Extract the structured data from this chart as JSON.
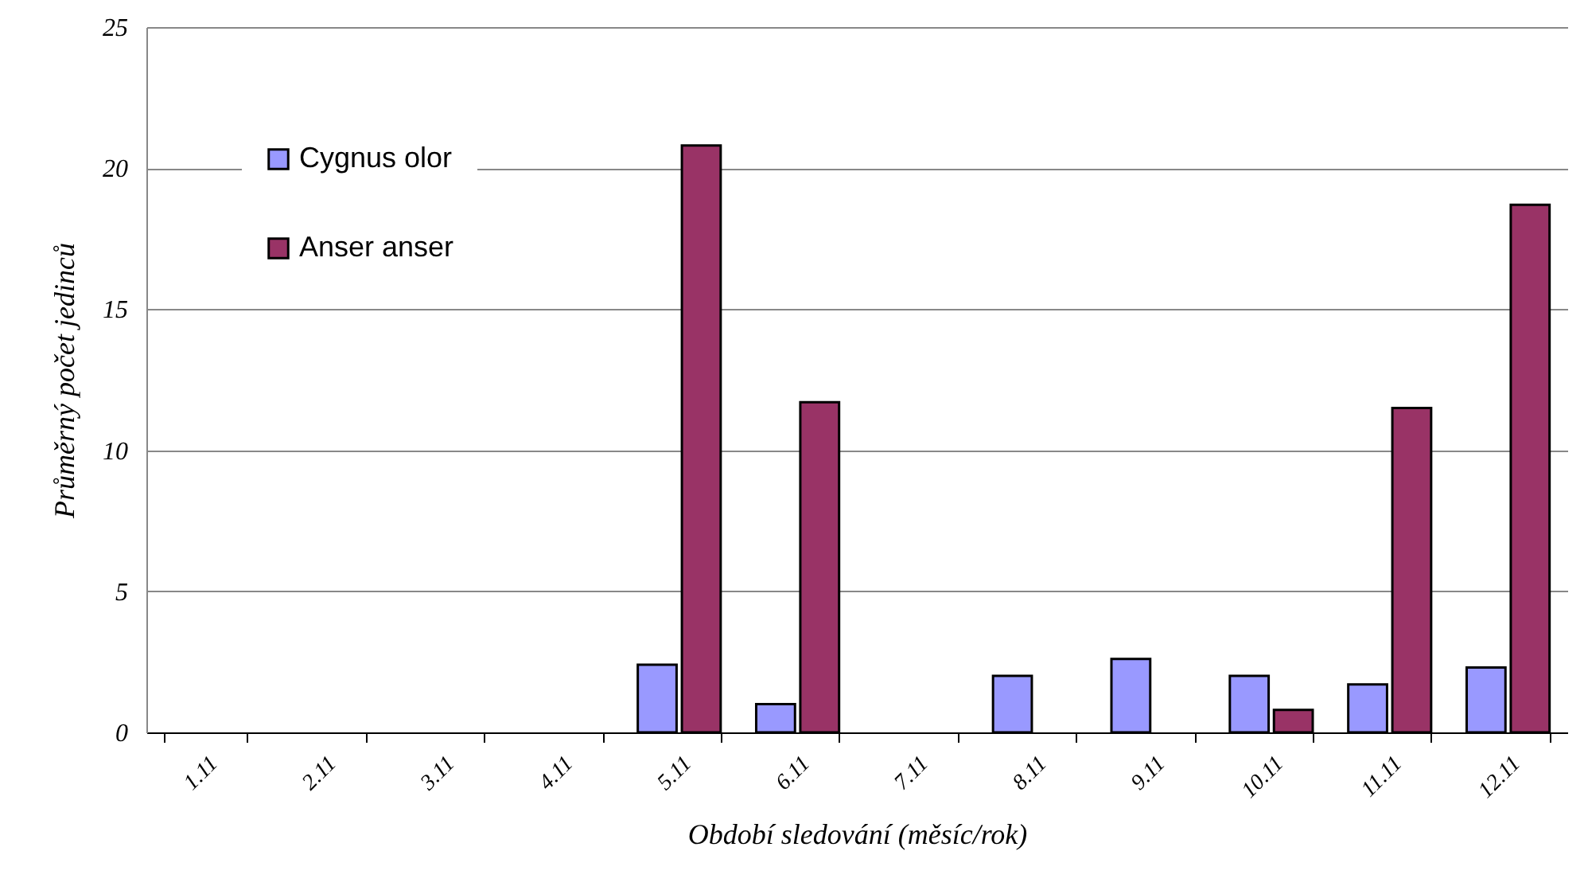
{
  "chart_data": {
    "type": "bar",
    "xlabel": "Období sledování (měsíc/rok)",
    "ylabel": "Průměrný počet jedinců",
    "categories": [
      "1.11",
      "2.11",
      "3.11",
      "4.11",
      "5.11",
      "6.11",
      "7.11",
      "8.11",
      "9.11",
      "10.11",
      "11.11",
      "12.11"
    ],
    "series": [
      {
        "name": "Cygnus olor",
        "color": "#9999ff",
        "values": [
          null,
          null,
          null,
          null,
          2.4,
          1.0,
          null,
          2.0,
          2.6,
          2.0,
          1.7,
          2.3
        ]
      },
      {
        "name": "Anser anser",
        "color": "#993366",
        "values": [
          null,
          null,
          null,
          null,
          20.8,
          11.7,
          null,
          null,
          null,
          0.8,
          11.5,
          18.7
        ]
      }
    ],
    "ylim": [
      0,
      25
    ],
    "yticks": [
      0,
      5,
      10,
      15,
      20,
      25
    ],
    "grid": "y",
    "legend": "top left"
  }
}
